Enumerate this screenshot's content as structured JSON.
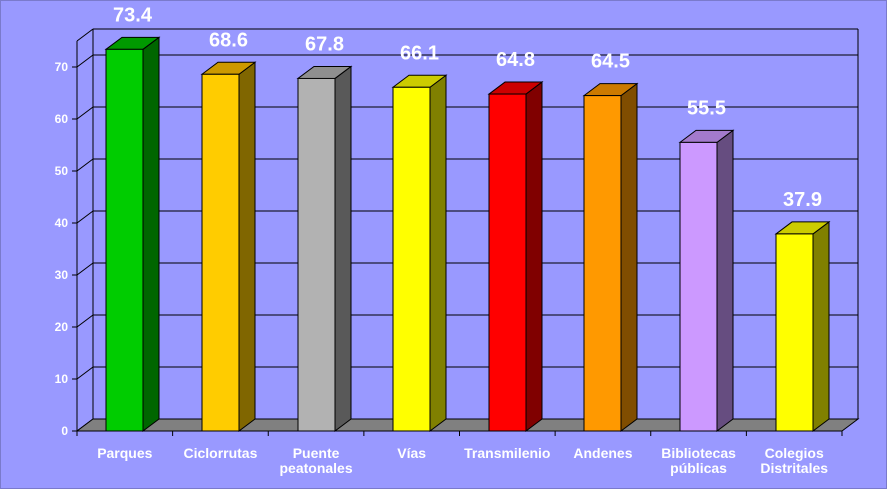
{
  "chart_data": {
    "type": "bar",
    "categories": [
      [
        "Parques"
      ],
      [
        "Ciclorrutas"
      ],
      [
        "Puente",
        "peatonales"
      ],
      [
        "Vías"
      ],
      [
        "Transmilenio"
      ],
      [
        "Andenes"
      ],
      [
        "Bibliotecas",
        "públicas"
      ],
      [
        "Colegios",
        "Distritales"
      ]
    ],
    "values": [
      73.4,
      68.6,
      67.8,
      66.1,
      64.8,
      64.5,
      55.5,
      37.9
    ],
    "data_labels": [
      "73.4",
      "68.6",
      "67.8",
      "66.1",
      "64.8",
      "64.5",
      "55.5",
      "37.9"
    ],
    "yticks": [
      0,
      10,
      20,
      30,
      40,
      50,
      60,
      70
    ],
    "ylim": [
      0,
      75
    ],
    "grid": true,
    "style": "3d-bar",
    "legend": "none",
    "bar_colors": [
      {
        "front": "#00cc00",
        "side": "#006600",
        "top": "#009900"
      },
      {
        "front": "#ffcc00",
        "side": "#806600",
        "top": "#cc9900"
      },
      {
        "front": "#b2b2b2",
        "side": "#595959",
        "top": "#8f8f8f"
      },
      {
        "front": "#ffff00",
        "side": "#808000",
        "top": "#cccc00"
      },
      {
        "front": "#ff0000",
        "side": "#800000",
        "top": "#cc0000"
      },
      {
        "front": "#ff9900",
        "side": "#804d00",
        "top": "#cc7a00"
      },
      {
        "front": "#cc99ff",
        "side": "#664d80",
        "top": "#a37acc"
      },
      {
        "front": "#ffff00",
        "side": "#808000",
        "top": "#cccc00"
      }
    ],
    "colors": {
      "background": "#9999ff",
      "grid": "#000000",
      "floor": "#808080",
      "text": "#ffffff"
    }
  }
}
